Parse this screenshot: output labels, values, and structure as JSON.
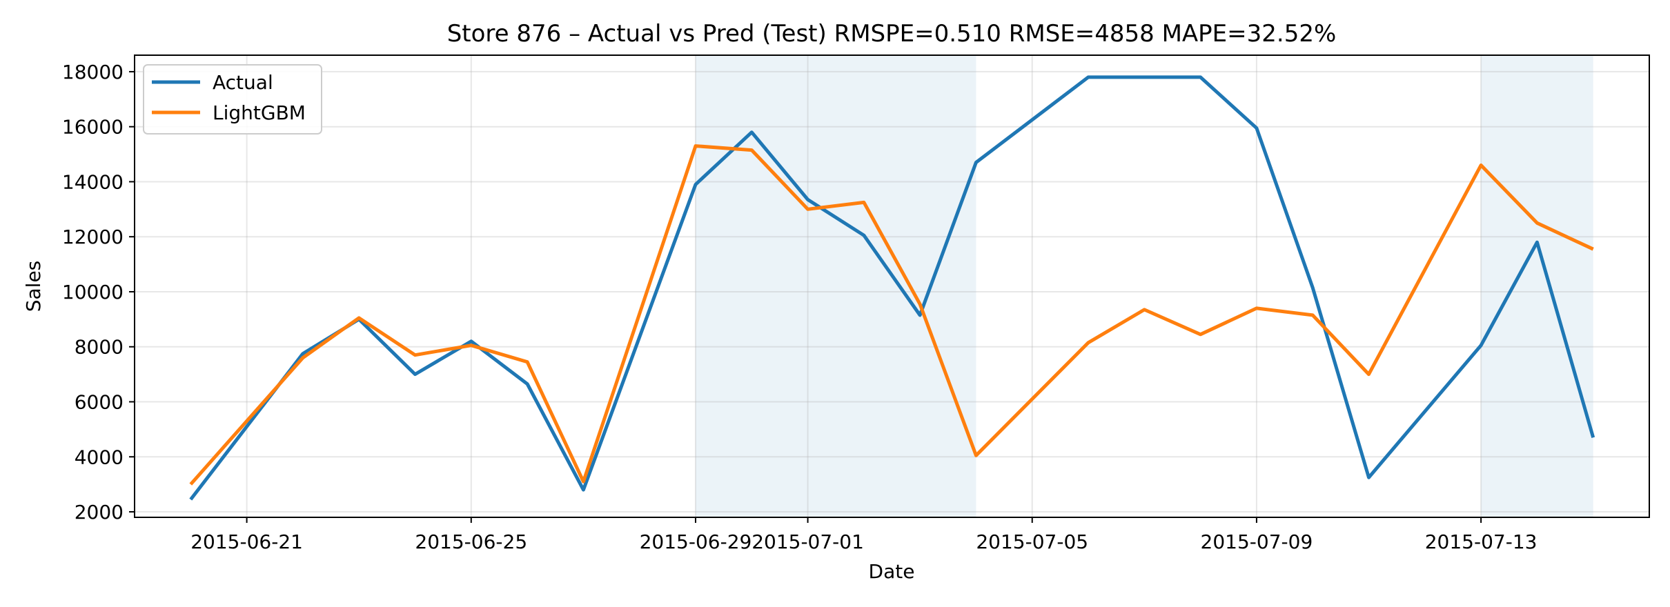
{
  "chart_data": {
    "type": "line",
    "title": "Store 876 – Actual vs Pred (Test)  RMSPE=0.510  RMSE=4858  MAPE=32.52%",
    "xlabel": "Date",
    "ylabel": "Sales",
    "x": [
      "2015-06-20",
      "2015-06-21",
      "2015-06-22",
      "2015-06-23",
      "2015-06-24",
      "2015-06-25",
      "2015-06-26",
      "2015-06-27",
      "2015-06-28",
      "2015-06-29",
      "2015-06-30",
      "2015-07-01",
      "2015-07-02",
      "2015-07-03",
      "2015-07-04",
      "2015-07-05",
      "2015-07-06",
      "2015-07-07",
      "2015-07-08",
      "2015-07-09",
      "2015-07-10",
      "2015-07-11",
      "2015-07-12",
      "2015-07-13",
      "2015-07-14",
      "2015-07-15"
    ],
    "xlim": [
      "2015-06-19",
      "2015-07-16"
    ],
    "xticks": [
      "2015-06-21",
      "2015-06-25",
      "2015-06-29",
      "2015-07-01",
      "2015-07-05",
      "2015-07-09",
      "2015-07-13"
    ],
    "ylim": [
      1800,
      18600
    ],
    "yticks": [
      2000,
      4000,
      6000,
      8000,
      10000,
      12000,
      14000,
      16000,
      18000
    ],
    "grid": true,
    "legend": "upper-left",
    "shaded_ranges": [
      [
        "2015-06-29",
        "2015-07-04"
      ],
      [
        "2015-07-13",
        "2015-07-15"
      ]
    ],
    "series": [
      {
        "name": "Actual",
        "color": "#1f77b4",
        "values": [
          2450,
          5100,
          7750,
          9000,
          7000,
          8200,
          6650,
          2800,
          null,
          13900,
          15800,
          13350,
          12050,
          9150,
          14700,
          null,
          17800,
          17800,
          17800,
          15950,
          10150,
          3250,
          null,
          8050,
          11800,
          4700
        ]
      },
      {
        "name": "LightGBM",
        "color": "#ff7f0e",
        "values": [
          3000,
          5300,
          7600,
          9050,
          7700,
          8050,
          7450,
          3100,
          null,
          15300,
          15150,
          13000,
          13250,
          9550,
          4050,
          null,
          8150,
          9350,
          8450,
          9400,
          9150,
          7000,
          null,
          14600,
          12500,
          11550
        ]
      }
    ]
  }
}
